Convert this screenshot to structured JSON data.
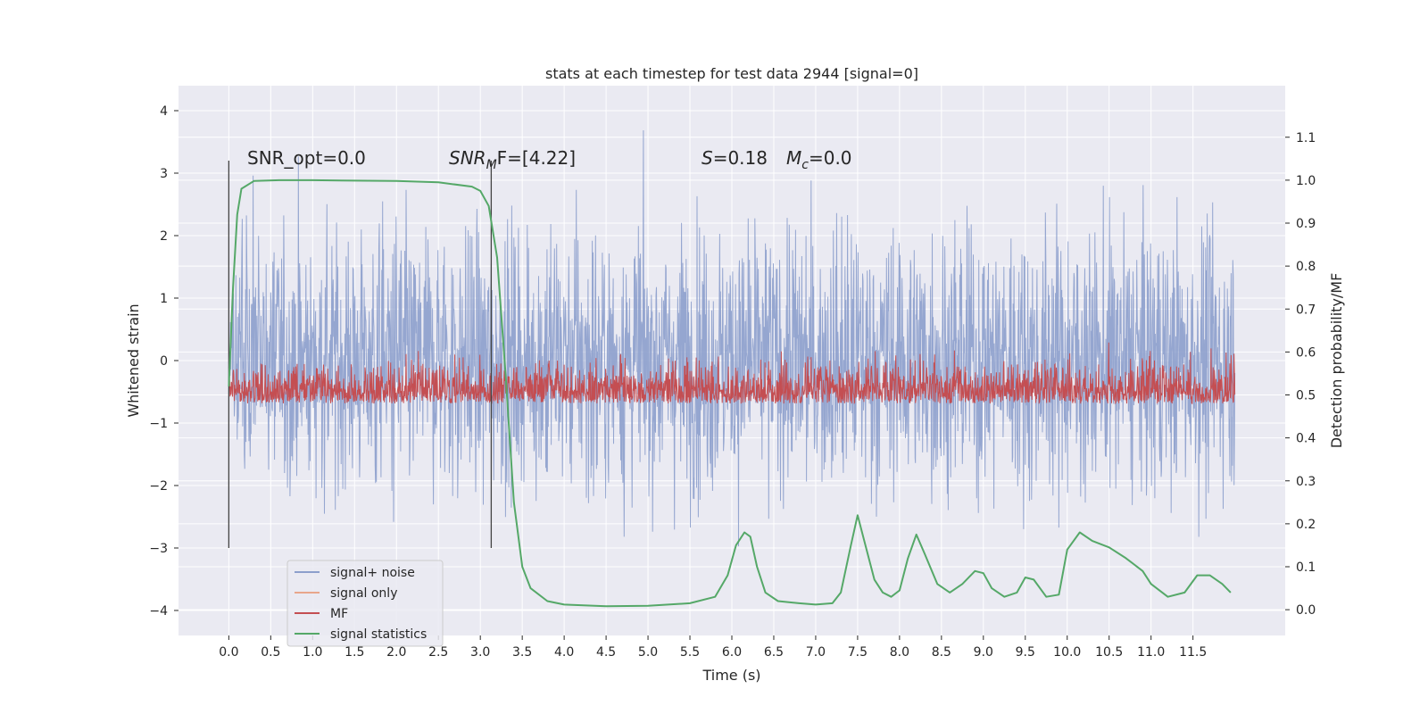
{
  "chart_data": {
    "type": "line",
    "title": "stats at each timestep for test data 2944 [signal=0]",
    "xlabel": "Time (s)",
    "ylabel": "Whitened strain",
    "y2label": "Detection probability/MF",
    "xlim": [
      -0.6,
      12.6
    ],
    "ylim": [
      -4.4,
      4.4
    ],
    "y2lim": [
      -0.06,
      1.22
    ],
    "x_ticks": [
      "0.0",
      "0.5",
      "1.0",
      "1.5",
      "2.0",
      "2.5",
      "3.0",
      "3.5",
      "4.0",
      "4.5",
      "5.0",
      "5.5",
      "6.0",
      "6.5",
      "7.0",
      "7.5",
      "8.0",
      "8.5",
      "9.0",
      "9.5",
      "10.0",
      "10.5",
      "11.0",
      "11.5"
    ],
    "y_ticks": [
      "4",
      "3",
      "2",
      "1",
      "0",
      "−1",
      "−2",
      "−3",
      "−4"
    ],
    "y2_ticks": [
      "1.1",
      "1.0",
      "0.9",
      "0.8",
      "0.7",
      "0.6",
      "0.5",
      "0.4",
      "0.3",
      "0.2",
      "0.1",
      "0.0"
    ],
    "grid": true,
    "legend_position": "lower-left",
    "annotations": {
      "snr_opt": "SNR_opt=0.0",
      "snr_mf_italic": "SNR",
      "snr_mf_sub": "M",
      "snr_mf_rest": "F=[4.22]",
      "s_italic": "S",
      "s_rest": "=0.18",
      "mc_italic": "M",
      "mc_sub": "c",
      "mc_rest": "=0.0"
    },
    "vertical_lines_x": [
      0.0,
      3.13
    ],
    "vertical_lines_range": [
      -3.0,
      3.2
    ],
    "series": [
      {
        "name": "signal+ noise",
        "color": "#8c9fcc",
        "description_range": [
          -3.8,
          4.1
        ],
        "x_range": [
          0.0,
          12.0
        ],
        "typical_amplitude": 1.8
      },
      {
        "name": "signal only",
        "color": "#e8a68b",
        "values_constant": 0
      },
      {
        "name": "MF",
        "color": "#c44e52",
        "x_range": [
          0.0,
          12.0
        ],
        "axis": "right",
        "baseline": 0.5,
        "typical_amplitude": 0.1
      },
      {
        "name": "signal statistics",
        "color": "#55a868",
        "axis": "right",
        "x": [
          0.0,
          0.05,
          0.1,
          0.15,
          0.3,
          0.6,
          1.0,
          2.0,
          2.5,
          2.9,
          3.0,
          3.1,
          3.2,
          3.3,
          3.4,
          3.5,
          3.6,
          3.8,
          4.0,
          4.5,
          5.0,
          5.5,
          5.8,
          5.95,
          6.05,
          6.15,
          6.22,
          6.3,
          6.4,
          6.55,
          6.8,
          7.0,
          7.2,
          7.3,
          7.42,
          7.5,
          7.58,
          7.7,
          7.8,
          7.9,
          8.0,
          8.1,
          8.2,
          8.3,
          8.45,
          8.6,
          8.75,
          8.9,
          9.0,
          9.1,
          9.25,
          9.4,
          9.5,
          9.6,
          9.75,
          9.9,
          10.0,
          10.15,
          10.3,
          10.5,
          10.7,
          10.9,
          11.0,
          11.2,
          11.4,
          11.55,
          11.7,
          11.85,
          11.95
        ],
        "values": [
          0.52,
          0.75,
          0.92,
          0.98,
          0.998,
          1.0,
          1.0,
          0.998,
          0.995,
          0.985,
          0.975,
          0.94,
          0.82,
          0.55,
          0.25,
          0.1,
          0.05,
          0.02,
          0.012,
          0.008,
          0.009,
          0.015,
          0.03,
          0.08,
          0.15,
          0.18,
          0.17,
          0.1,
          0.04,
          0.02,
          0.015,
          0.012,
          0.015,
          0.04,
          0.15,
          0.22,
          0.16,
          0.07,
          0.04,
          0.03,
          0.045,
          0.12,
          0.175,
          0.13,
          0.06,
          0.04,
          0.06,
          0.09,
          0.085,
          0.05,
          0.03,
          0.04,
          0.075,
          0.07,
          0.03,
          0.035,
          0.14,
          0.18,
          0.16,
          0.145,
          0.12,
          0.09,
          0.06,
          0.03,
          0.04,
          0.08,
          0.08,
          0.06,
          0.04
        ]
      }
    ]
  }
}
